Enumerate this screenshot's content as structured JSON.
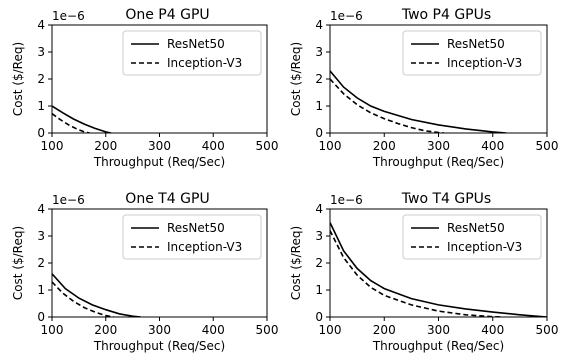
{
  "chart_data": [
    {
      "type": "line",
      "title": "One P4 GPU",
      "xlabel": "Throughput (Req/Sec)",
      "ylabel": "Cost ($/Req)",
      "y_offset_label": "1e−6",
      "xlim": [
        100,
        500
      ],
      "ylim": [
        0,
        4
      ],
      "xticks": [
        100,
        200,
        300,
        400,
        500
      ],
      "yticks": [
        0,
        1,
        2,
        3,
        4
      ],
      "legend": "top-right",
      "series": [
        {
          "name": "ResNet50",
          "style": "solid",
          "x": [
            100,
            120,
            140,
            160,
            180,
            200,
            210
          ],
          "y": [
            1.0,
            0.75,
            0.52,
            0.33,
            0.17,
            0.04,
            0.0
          ]
        },
        {
          "name": "Inception-V3",
          "style": "dashed",
          "x": [
            100,
            115,
            130,
            145,
            160,
            170
          ],
          "y": [
            0.72,
            0.5,
            0.31,
            0.16,
            0.04,
            0.0
          ]
        }
      ]
    },
    {
      "type": "line",
      "title": "Two P4 GPUs",
      "xlabel": "Throughput (Req/Sec)",
      "ylabel": "Cost ($/Req)",
      "y_offset_label": "1e−6",
      "xlim": [
        100,
        500
      ],
      "ylim": [
        0,
        4
      ],
      "xticks": [
        100,
        200,
        300,
        400,
        500
      ],
      "yticks": [
        0,
        1,
        2,
        3,
        4
      ],
      "legend": "top-right",
      "series": [
        {
          "name": "ResNet50",
          "style": "solid",
          "x": [
            100,
            125,
            150,
            175,
            200,
            250,
            300,
            350,
            400,
            425
          ],
          "y": [
            2.3,
            1.7,
            1.3,
            1.0,
            0.8,
            0.5,
            0.3,
            0.15,
            0.04,
            0.0
          ]
        },
        {
          "name": "Inception-V3",
          "style": "dashed",
          "x": [
            100,
            125,
            150,
            175,
            200,
            225,
            250,
            275,
            300,
            310
          ],
          "y": [
            2.0,
            1.45,
            1.05,
            0.75,
            0.53,
            0.35,
            0.2,
            0.08,
            0.02,
            0.0
          ]
        }
      ]
    },
    {
      "type": "line",
      "title": "One T4 GPU",
      "xlabel": "Throughput (Req/Sec)",
      "ylabel": "Cost ($/Req)",
      "y_offset_label": "1e−6",
      "xlim": [
        100,
        500
      ],
      "ylim": [
        0,
        4
      ],
      "xticks": [
        100,
        200,
        300,
        400,
        500
      ],
      "yticks": [
        0,
        1,
        2,
        3,
        4
      ],
      "legend": "top-right",
      "series": [
        {
          "name": "ResNet50",
          "style": "solid",
          "x": [
            100,
            125,
            150,
            175,
            200,
            225,
            250,
            265
          ],
          "y": [
            1.6,
            1.05,
            0.7,
            0.45,
            0.27,
            0.12,
            0.03,
            0.0
          ]
        },
        {
          "name": "Inception-V3",
          "style": "dashed",
          "x": [
            100,
            120,
            140,
            160,
            180,
            200,
            215
          ],
          "y": [
            1.3,
            0.88,
            0.58,
            0.35,
            0.18,
            0.05,
            0.0
          ]
        }
      ]
    },
    {
      "type": "line",
      "title": "Two T4 GPUs",
      "xlabel": "Throughput (Req/Sec)",
      "ylabel": "Cost ($/Req)",
      "y_offset_label": "1e−6",
      "xlim": [
        100,
        500
      ],
      "ylim": [
        0,
        4
      ],
      "xticks": [
        100,
        200,
        300,
        400,
        500
      ],
      "yticks": [
        0,
        1,
        2,
        3,
        4
      ],
      "legend": "top-right",
      "series": [
        {
          "name": "ResNet50",
          "style": "solid",
          "x": [
            100,
            125,
            150,
            175,
            200,
            250,
            300,
            350,
            400,
            450,
            500
          ],
          "y": [
            3.5,
            2.45,
            1.8,
            1.35,
            1.05,
            0.68,
            0.45,
            0.3,
            0.18,
            0.08,
            0.0
          ]
        },
        {
          "name": "Inception-V3",
          "style": "dashed",
          "x": [
            100,
            125,
            150,
            175,
            200,
            250,
            300,
            350,
            400,
            415
          ],
          "y": [
            3.2,
            2.2,
            1.55,
            1.1,
            0.8,
            0.45,
            0.22,
            0.08,
            0.01,
            0.0
          ]
        }
      ]
    }
  ]
}
